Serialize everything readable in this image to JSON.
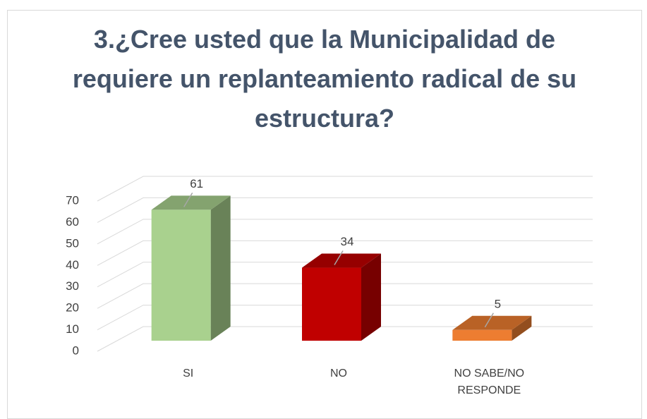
{
  "chart_data": {
    "type": "bar3d",
    "title": "3.¿Cree usted que la Municipalidad de requiere un replanteamiento radical de su estructura?",
    "categories": [
      "SI",
      "NO",
      "NO SABE/NO RESPONDE"
    ],
    "values": [
      61,
      34,
      5
    ],
    "colors": [
      "#a9d18e",
      "#c00000",
      "#ed7d31"
    ],
    "ylim": [
      0,
      70
    ],
    "yticks": [
      0,
      10,
      20,
      30,
      40,
      50,
      60,
      70
    ],
    "grid": true
  }
}
